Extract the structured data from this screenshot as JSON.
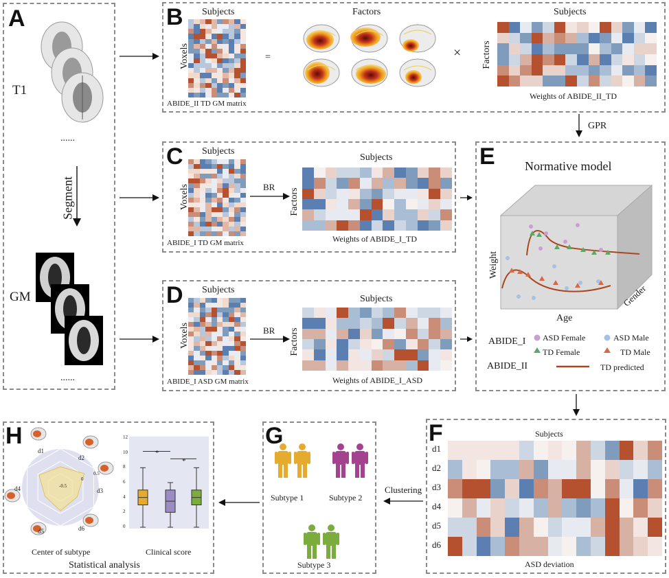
{
  "panels": {
    "a": {
      "label": "A",
      "t1": "T1",
      "dots1": "......",
      "segment": "Segment",
      "gm": "GM",
      "dots2": "......"
    },
    "b": {
      "label": "B",
      "subjects_left": "Subjects",
      "voxels": "Voxels",
      "matrix_caption": "ABIDE_II TD GM matrix",
      "equals": "=",
      "factors_title": "Factors",
      "times": "×",
      "subjects_right": "Subjects",
      "factors_axis": "Factors",
      "weights_caption": "Weights of  ABIDE_II_TD"
    },
    "gpr": "GPR",
    "c": {
      "label": "C",
      "subjects_left": "Subjects",
      "voxels": "Voxels",
      "matrix_caption": "ABIDE_I TD GM matrix",
      "br": "BR",
      "subjects_right": "Subjects",
      "factors_axis": "Factors",
      "weights_caption": "Weights of  ABIDE_I_TD"
    },
    "d": {
      "label": "D",
      "subjects_left": "Subjects",
      "voxels": "Voxels",
      "matrix_caption": "ABIDE_I ASD GM matrix",
      "br": "BR",
      "subjects_right": "Subjects",
      "factors_axis": "Factors",
      "weights_caption": "Weights of  ABIDE_I_ASD"
    },
    "e": {
      "label": "E",
      "title": "Normative model",
      "weight_axis": "Weight",
      "age_axis": "Age",
      "gender_axis": "Gender",
      "abide_i": "ABIDE_I",
      "abide_ii": "ABIDE_II",
      "asd_female": "ASD Female",
      "asd_male": "ASD Male",
      "td_female": "TD Female",
      "td_male": "TD Male",
      "td_predicted": "TD    predicted"
    },
    "f": {
      "label": "F",
      "subjects": "Subjects",
      "rows": [
        "d1",
        "d2",
        "d3",
        "d4",
        "d5",
        "d6"
      ],
      "caption": "ASD deviation"
    },
    "clustering": "Clustering",
    "g": {
      "label": "G",
      "subtype1": "Subtype 1",
      "subtype2": "Subtype 2",
      "subtype3": "Subtype 3"
    },
    "h": {
      "label": "H",
      "radar_labels": [
        "d1",
        "d2",
        "d3",
        "d4",
        "d5",
        "d6"
      ],
      "radar_ticks": [
        "-0.5",
        "0",
        "0.5"
      ],
      "y_ticks": [
        "0",
        "2",
        "4",
        "6",
        "8",
        "10",
        "12"
      ],
      "star1": "*",
      "star2": "*",
      "center_caption": "Center of subtype",
      "clinical_caption": "Clinical score",
      "bottom_caption": "Statistical analysis"
    }
  },
  "colors": {
    "red": "#b5512e",
    "blue": "#5b7fb0",
    "orange": "#e5ab2f",
    "magenta": "#a3438f",
    "green": "#7cab3e",
    "curve": "#a8471f",
    "purple_dot": "#c79fd2",
    "blue_dot": "#a6c2e2",
    "green_tri": "#5ca66a",
    "red_tri": "#d36b4a"
  }
}
